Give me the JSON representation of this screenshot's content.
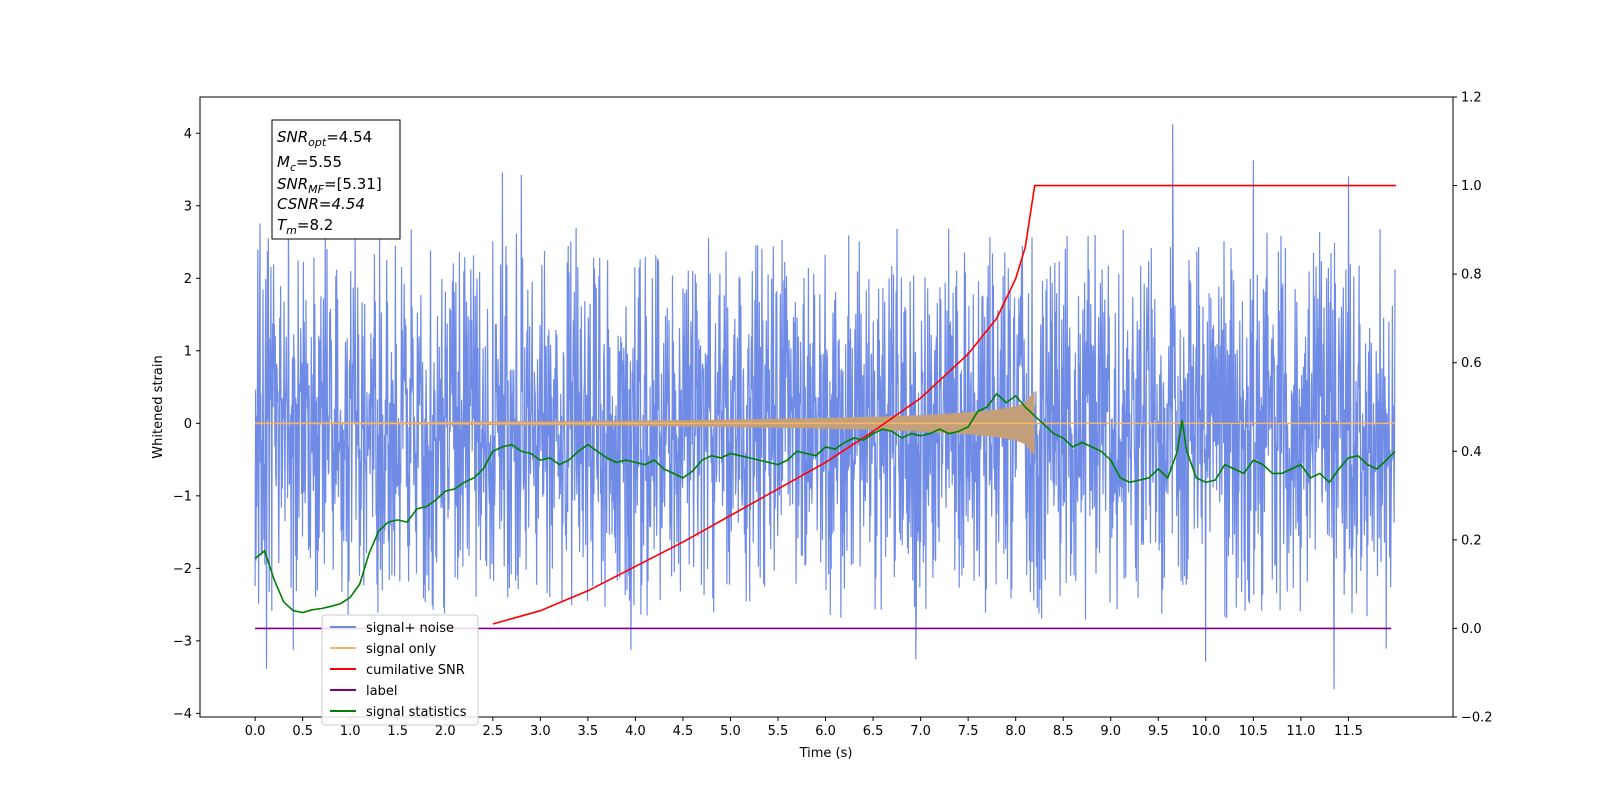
{
  "chart_data": {
    "type": "line",
    "xlabel": "Time (s)",
    "ylabel": "Whitened strain",
    "xlim": [
      -0.58,
      12.6
    ],
    "ylim_left": [
      -4.05,
      4.5
    ],
    "ylim_right": [
      -0.2,
      1.2
    ],
    "x_ticks": [
      "0.0",
      "0.5",
      "1.0",
      "1.5",
      "2.0",
      "2.5",
      "3.0",
      "3.5",
      "4.0",
      "4.5",
      "5.0",
      "5.5",
      "6.0",
      "6.5",
      "7.0",
      "7.5",
      "8.0",
      "8.5",
      "9.0",
      "9.5",
      "10.0",
      "10.5",
      "11.0",
      "11.5"
    ],
    "y_ticks_left": [
      "−4",
      "−3",
      "−2",
      "−1",
      "0",
      "1",
      "2",
      "3",
      "4"
    ],
    "y_ticks_right": [
      "−0.2",
      "0.0",
      "0.2",
      "0.4",
      "0.6",
      "0.8",
      "1.0",
      "1.2"
    ],
    "grid": false,
    "legend_position": "lower-left",
    "colors": {
      "noise": "#6f8be6",
      "signal": "#f5b56a",
      "signal_fill": "#c4a07a",
      "snr": "#ff0000",
      "label": "#800080",
      "stats": "#008000"
    },
    "info_box": {
      "snr_opt_base": "SNR",
      "snr_opt_sub": "opt",
      "snr_opt_val": "=4.54",
      "mc_base": "M",
      "mc_sub": "c",
      "mc_val": "=5.55",
      "snr_mf_base": "SNR",
      "snr_mf_sub": "MF",
      "snr_mf_val": "=[5.31]",
      "csnr_line": "CSNR=4.54",
      "tm_base": "T",
      "tm_sub": "m",
      "tm_val": "=8.2"
    },
    "series": [
      {
        "name": "signal+ noise",
        "axis": "left",
        "x_range": [
          0.0,
          11.99
        ],
        "band_upper": 2.1,
        "band_lower": -2.1,
        "peaks": [
          {
            "x": 0.05,
            "y": 2.75
          },
          {
            "x": 0.12,
            "y": 3.12
          },
          {
            "x": 0.35,
            "y": 3.0
          },
          {
            "x": 2.6,
            "y": 3.45
          },
          {
            "x": 2.8,
            "y": 3.42
          },
          {
            "x": 9.65,
            "y": 4.12
          },
          {
            "x": 10.5,
            "y": 3.62
          },
          {
            "x": 11.5,
            "y": 3.4
          },
          {
            "x": 0.12,
            "y": -3.38
          },
          {
            "x": 0.4,
            "y": -3.12
          },
          {
            "x": 3.95,
            "y": -3.12
          },
          {
            "x": 6.95,
            "y": -3.25
          },
          {
            "x": 10.0,
            "y": -3.28
          },
          {
            "x": 11.35,
            "y": -3.66
          },
          {
            "x": 11.9,
            "y": -3.1
          }
        ]
      },
      {
        "name": "signal only",
        "axis": "left",
        "x": [
          0,
          0.5,
          1,
          1.5,
          2,
          2.5,
          3,
          3.5,
          4,
          4.5,
          5,
          5.5,
          6,
          6.5,
          7,
          7.5,
          7.8,
          8.0,
          8.1,
          8.2
        ],
        "envelope": [
          0.012,
          0.013,
          0.015,
          0.017,
          0.02,
          0.023,
          0.027,
          0.032,
          0.037,
          0.044,
          0.052,
          0.062,
          0.074,
          0.09,
          0.113,
          0.15,
          0.19,
          0.235,
          0.29,
          0.45
        ]
      },
      {
        "name": "cumilative SNR",
        "axis": "right",
        "x": [
          2.5,
          3,
          3.5,
          4,
          4.5,
          5,
          5.5,
          6,
          6.5,
          7,
          7.5,
          7.8,
          8.0,
          8.1,
          8.2,
          12.0
        ],
        "y": [
          0.01,
          0.04,
          0.085,
          0.14,
          0.195,
          0.255,
          0.315,
          0.375,
          0.445,
          0.52,
          0.62,
          0.7,
          0.79,
          0.86,
          1.0,
          1.0
        ]
      },
      {
        "name": "label",
        "axis": "right",
        "x": [
          0.0,
          11.95
        ],
        "y": [
          0.0,
          0.0
        ]
      },
      {
        "name": "signal statistics",
        "axis": "right",
        "x": [
          0.0,
          0.1,
          0.2,
          0.3,
          0.4,
          0.5,
          0.6,
          0.7,
          0.8,
          0.9,
          1.0,
          1.1,
          1.2,
          1.3,
          1.4,
          1.5,
          1.6,
          1.7,
          1.8,
          1.9,
          2.0,
          2.1,
          2.2,
          2.3,
          2.4,
          2.5,
          2.6,
          2.7,
          2.8,
          2.9,
          3.0,
          3.1,
          3.2,
          3.3,
          3.4,
          3.5,
          3.6,
          3.7,
          3.8,
          3.9,
          4.0,
          4.1,
          4.2,
          4.3,
          4.4,
          4.5,
          4.6,
          4.7,
          4.8,
          4.9,
          5.0,
          5.1,
          5.2,
          5.3,
          5.4,
          5.5,
          5.6,
          5.7,
          5.8,
          5.9,
          6.0,
          6.1,
          6.2,
          6.3,
          6.4,
          6.5,
          6.6,
          6.7,
          6.8,
          6.9,
          7.0,
          7.1,
          7.2,
          7.3,
          7.4,
          7.5,
          7.6,
          7.7,
          7.8,
          7.9,
          8.0,
          8.1,
          8.2,
          8.3,
          8.4,
          8.5,
          8.6,
          8.7,
          8.8,
          8.9,
          9.0,
          9.1,
          9.2,
          9.3,
          9.4,
          9.5,
          9.6,
          9.7,
          9.75,
          9.8,
          9.9,
          10.0,
          10.1,
          10.2,
          10.3,
          10.4,
          10.5,
          10.6,
          10.7,
          10.8,
          10.9,
          11.0,
          11.1,
          11.2,
          11.3,
          11.4,
          11.5,
          11.6,
          11.7,
          11.8,
          11.9,
          11.99
        ],
        "y": [
          0.158,
          0.175,
          0.11,
          0.06,
          0.04,
          0.036,
          0.042,
          0.045,
          0.05,
          0.056,
          0.07,
          0.1,
          0.17,
          0.22,
          0.24,
          0.245,
          0.24,
          0.27,
          0.275,
          0.29,
          0.31,
          0.315,
          0.33,
          0.34,
          0.36,
          0.4,
          0.41,
          0.415,
          0.4,
          0.395,
          0.38,
          0.385,
          0.37,
          0.38,
          0.4,
          0.415,
          0.4,
          0.385,
          0.375,
          0.38,
          0.375,
          0.37,
          0.38,
          0.36,
          0.35,
          0.34,
          0.355,
          0.38,
          0.39,
          0.385,
          0.395,
          0.39,
          0.385,
          0.38,
          0.375,
          0.37,
          0.38,
          0.4,
          0.395,
          0.39,
          0.41,
          0.405,
          0.42,
          0.43,
          0.425,
          0.44,
          0.45,
          0.445,
          0.43,
          0.44,
          0.435,
          0.44,
          0.45,
          0.44,
          0.445,
          0.455,
          0.49,
          0.5,
          0.53,
          0.51,
          0.525,
          0.5,
          0.48,
          0.46,
          0.44,
          0.43,
          0.41,
          0.42,
          0.41,
          0.4,
          0.38,
          0.34,
          0.33,
          0.335,
          0.34,
          0.36,
          0.34,
          0.4,
          0.47,
          0.4,
          0.34,
          0.33,
          0.335,
          0.37,
          0.36,
          0.35,
          0.38,
          0.37,
          0.35,
          0.35,
          0.36,
          0.37,
          0.34,
          0.35,
          0.33,
          0.36,
          0.385,
          0.39,
          0.37,
          0.36,
          0.38,
          0.4
        ]
      }
    ]
  }
}
